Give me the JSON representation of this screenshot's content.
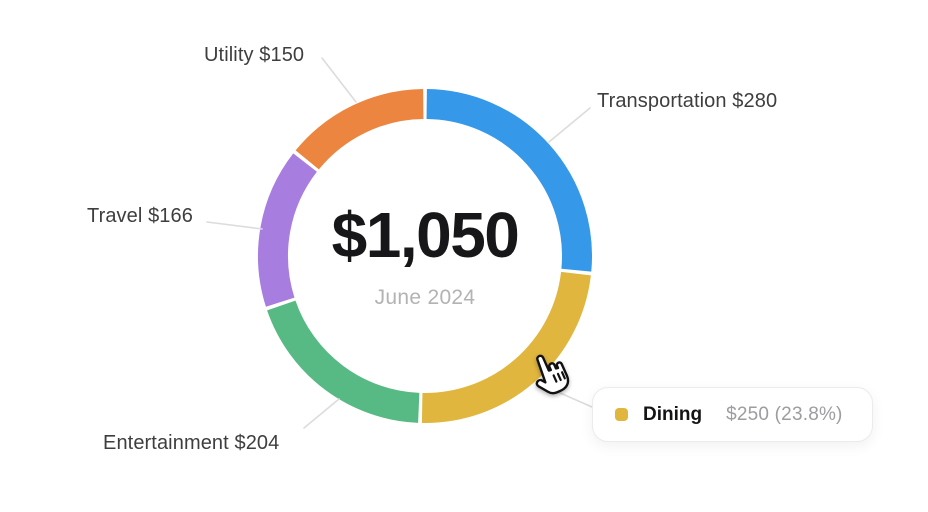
{
  "chart_data": {
    "type": "pie",
    "donut": true,
    "total": 1050,
    "start_angle_deg": 0,
    "direction": "clockwise",
    "gap_deg": 1.3,
    "legend_position": "none",
    "center": {
      "total": "$1,050",
      "period": "June 2024"
    },
    "segments": [
      {
        "label": "Transportation",
        "value": 280,
        "color": "#3598e8"
      },
      {
        "label": "Dining",
        "value": 250,
        "color": "#e0b63e"
      },
      {
        "label": "Entertainment",
        "value": 204,
        "color": "#57b983"
      },
      {
        "label": "Travel",
        "value": 166,
        "color": "#a87de0"
      },
      {
        "label": "Utility",
        "value": 150,
        "color": "#ec8540"
      }
    ],
    "callouts": {
      "utility": "Utility $150",
      "transportation": "Transportation $280",
      "travel": "Travel $166",
      "entertainment": "Entertainment $204"
    },
    "tooltip": {
      "category": "Dining",
      "detail": "$250 (23.8%)",
      "swatch_color": "#e0b63e"
    }
  },
  "icons": {
    "cursor": "hand-pointer"
  },
  "colors": {
    "leader_line": "#dcdcde",
    "background": "#ffffff"
  }
}
